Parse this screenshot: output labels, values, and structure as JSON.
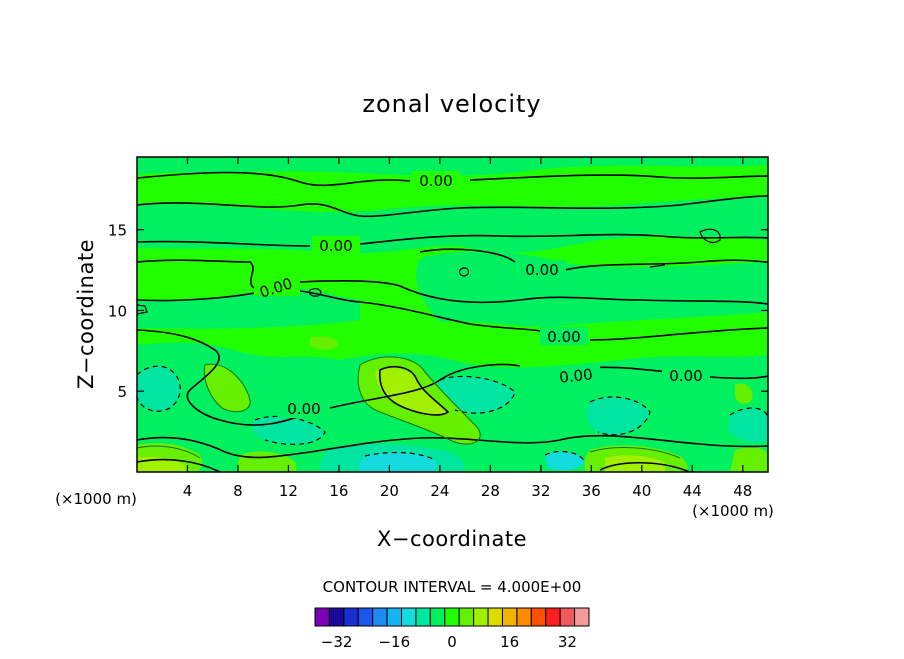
{
  "chart_data": {
    "type": "contour",
    "title": "zonal velocity",
    "xlabel": "X−coordinate",
    "ylabel": "Z−coordinate",
    "x_unit_left": "(×1000 m)",
    "x_unit_right": "(×1000 m)",
    "xlim": [
      0,
      50
    ],
    "ylim": [
      0,
      19.5
    ],
    "x_ticks": [
      4,
      8,
      12,
      16,
      20,
      24,
      28,
      32,
      36,
      40,
      44,
      48
    ],
    "y_ticks": [
      5,
      10,
      15
    ],
    "contour_interval_text": "CONTOUR INTERVAL = 4.000E+00",
    "contour_labels": [
      "0.00",
      "0.00",
      "0.00",
      "0.00",
      "0.00",
      "0.00",
      "0.00",
      "0.00"
    ],
    "colorbar": {
      "colors": [
        "#7a00b4",
        "#1a0a9c",
        "#1a2ed2",
        "#1e55f0",
        "#1c8cf0",
        "#14b4f0",
        "#14dcdc",
        "#00e6a0",
        "#00f060",
        "#22ff00",
        "#64f000",
        "#a0f000",
        "#dcdc00",
        "#f0b400",
        "#ff8c00",
        "#ff5000",
        "#ff1e1e",
        "#f05a5a",
        "#f59a9a"
      ],
      "tick_labels": [
        "−32",
        "−16",
        "0",
        "16",
        "32"
      ],
      "tick_values": [
        -32,
        -16,
        0,
        16,
        32
      ]
    },
    "grid": false,
    "legend": "colorbar-bottom"
  }
}
